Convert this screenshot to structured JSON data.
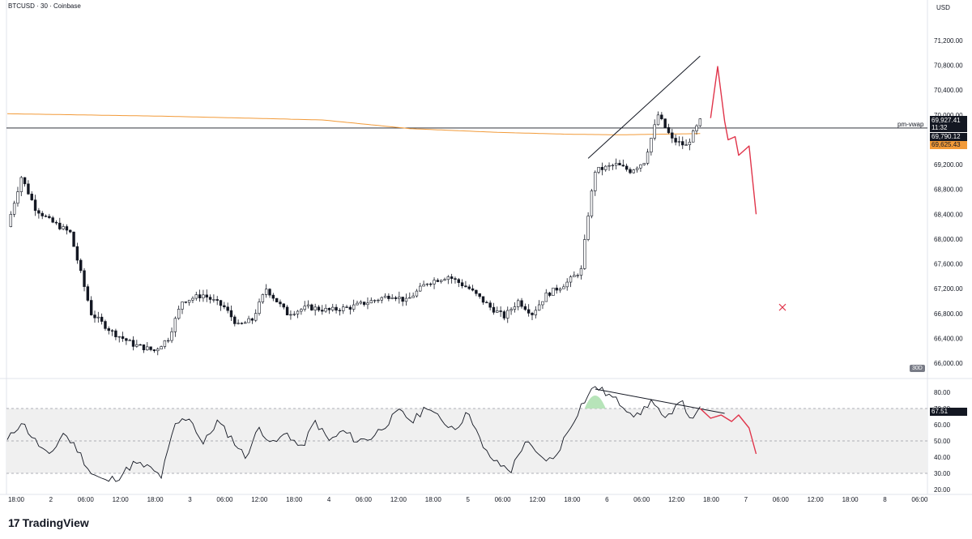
{
  "header": {
    "title": "BTCUSD · 30 · Coinbase",
    "currency": "USD"
  },
  "tags": {
    "last_price": "69,927.41",
    "countdown": "11:32",
    "vwap_value": "69,790.12",
    "orange_value": "69,625.43",
    "vwap_label": "pm-vwap",
    "rsi_value": "67.51",
    "timeframe_badge": "30D"
  },
  "brand": {
    "logo": "17",
    "name": "TradingView"
  },
  "colors": {
    "candle": "#131722",
    "orange_line": "#f29a38",
    "projection": "#e0344a",
    "rsi_band": "#f0f0f0",
    "rsi_fill": "#b7e4b9"
  },
  "chart_data": [
    {
      "type": "candlestick",
      "title": "BTCUSD · 30 · Coinbase",
      "yaxis": {
        "min": 65800,
        "max": 71200,
        "ticks": [
          "71,200.00",
          "70,800.00",
          "70,400.00",
          "70,000.00",
          "69,600.00",
          "69,200.00",
          "68,800.00",
          "68,400.00",
          "68,000.00",
          "67,600.00",
          "67,200.00",
          "66,800.00",
          "66,400.00",
          "66,000.00"
        ],
        "tick_values": [
          71200,
          70800,
          70400,
          70000,
          69600,
          69200,
          68800,
          68400,
          68000,
          67600,
          67200,
          66800,
          66400,
          66000
        ]
      },
      "xaxis": {
        "ticks": [
          "18:00",
          "2",
          "06:00",
          "12:00",
          "18:00",
          "3",
          "06:00",
          "12:00",
          "18:00",
          "4",
          "06:00",
          "12:00",
          "18:00",
          "5",
          "06:00",
          "12:00",
          "18:00",
          "6",
          "06:00",
          "12:00",
          "18:00",
          "7",
          "06:00",
          "12:00",
          "18:00",
          "8",
          "06:00"
        ]
      },
      "anchors": [
        [
          0,
          68200
        ],
        [
          4,
          69000
        ],
        [
          8,
          68500
        ],
        [
          12,
          68300
        ],
        [
          18,
          68100
        ],
        [
          24,
          66800
        ],
        [
          30,
          66500
        ],
        [
          36,
          66300
        ],
        [
          42,
          66200
        ],
        [
          46,
          66400
        ],
        [
          50,
          67000
        ],
        [
          56,
          67100
        ],
        [
          62,
          66900
        ],
        [
          66,
          66600
        ],
        [
          70,
          66700
        ],
        [
          74,
          67200
        ],
        [
          80,
          66800
        ],
        [
          86,
          66900
        ],
        [
          92,
          66850
        ],
        [
          98,
          66900
        ],
        [
          104,
          67000
        ],
        [
          110,
          67100
        ],
        [
          114,
          67000
        ],
        [
          120,
          67300
        ],
        [
          126,
          67400
        ],
        [
          132,
          67200
        ],
        [
          138,
          66900
        ],
        [
          142,
          66750
        ],
        [
          146,
          67000
        ],
        [
          150,
          66800
        ],
        [
          154,
          67100
        ],
        [
          160,
          67300
        ],
        [
          164,
          67500
        ],
        [
          166,
          68400
        ],
        [
          168,
          69100
        ],
        [
          174,
          69200
        ],
        [
          178,
          69100
        ],
        [
          182,
          69250
        ],
        [
          186,
          70000
        ],
        [
          190,
          69600
        ],
        [
          194,
          69500
        ],
        [
          198,
          69900
        ]
      ],
      "vwap": [
        [
          0,
          70020
        ],
        [
          45,
          69980
        ],
        [
          90,
          69920
        ],
        [
          115,
          69780
        ],
        [
          140,
          69720
        ],
        [
          160,
          69690
        ],
        [
          175,
          69680
        ],
        [
          198,
          69700
        ]
      ],
      "resistance_line": [
        [
          166,
          69300
        ],
        [
          198,
          70950
        ]
      ],
      "horizontal_line": 69790.12,
      "projection": [
        [
          201,
          69950
        ],
        [
          203,
          70780
        ],
        [
          205,
          69900
        ],
        [
          206,
          69600
        ],
        [
          208,
          69650
        ],
        [
          209,
          69350
        ],
        [
          212,
          69500
        ],
        [
          214,
          68400
        ]
      ],
      "target_marker": 66900
    },
    {
      "type": "line",
      "title": "RSI",
      "yaxis": {
        "min": 20,
        "max": 85,
        "ticks": [
          "80.00",
          "70.00",
          "60.00",
          "50.00",
          "40.00",
          "30.00",
          "20.00"
        ],
        "tick_values": [
          80,
          70,
          60,
          50,
          40,
          30,
          20
        ]
      },
      "band": [
        30,
        70
      ],
      "anchors": [
        [
          0,
          50
        ],
        [
          4,
          62
        ],
        [
          8,
          50
        ],
        [
          12,
          40
        ],
        [
          16,
          55
        ],
        [
          20,
          45
        ],
        [
          24,
          30
        ],
        [
          28,
          25
        ],
        [
          32,
          28
        ],
        [
          36,
          36
        ],
        [
          40,
          34
        ],
        [
          44,
          28
        ],
        [
          48,
          60
        ],
        [
          52,
          65
        ],
        [
          56,
          48
        ],
        [
          60,
          62
        ],
        [
          64,
          52
        ],
        [
          68,
          40
        ],
        [
          72,
          58
        ],
        [
          76,
          48
        ],
        [
          80,
          55
        ],
        [
          84,
          45
        ],
        [
          88,
          62
        ],
        [
          92,
          50
        ],
        [
          96,
          56
        ],
        [
          100,
          50
        ],
        [
          104,
          52
        ],
        [
          108,
          60
        ],
        [
          112,
          68
        ],
        [
          116,
          62
        ],
        [
          120,
          72
        ],
        [
          124,
          62
        ],
        [
          128,
          58
        ],
        [
          132,
          68
        ],
        [
          136,
          45
        ],
        [
          140,
          36
        ],
        [
          144,
          32
        ],
        [
          148,
          50
        ],
        [
          152,
          40
        ],
        [
          156,
          38
        ],
        [
          160,
          55
        ],
        [
          164,
          72
        ],
        [
          168,
          84
        ],
        [
          172,
          78
        ],
        [
          176,
          72
        ],
        [
          180,
          65
        ],
        [
          184,
          75
        ],
        [
          188,
          62
        ],
        [
          192,
          76
        ],
        [
          196,
          62
        ],
        [
          198,
          70
        ]
      ],
      "divergence_line": [
        [
          168,
          82
        ],
        [
          205,
          67
        ]
      ],
      "projection": [
        [
          198,
          70
        ],
        [
          201,
          64
        ],
        [
          204,
          66
        ],
        [
          207,
          62
        ],
        [
          209,
          66
        ],
        [
          212,
          58
        ],
        [
          214,
          42
        ]
      ]
    }
  ]
}
